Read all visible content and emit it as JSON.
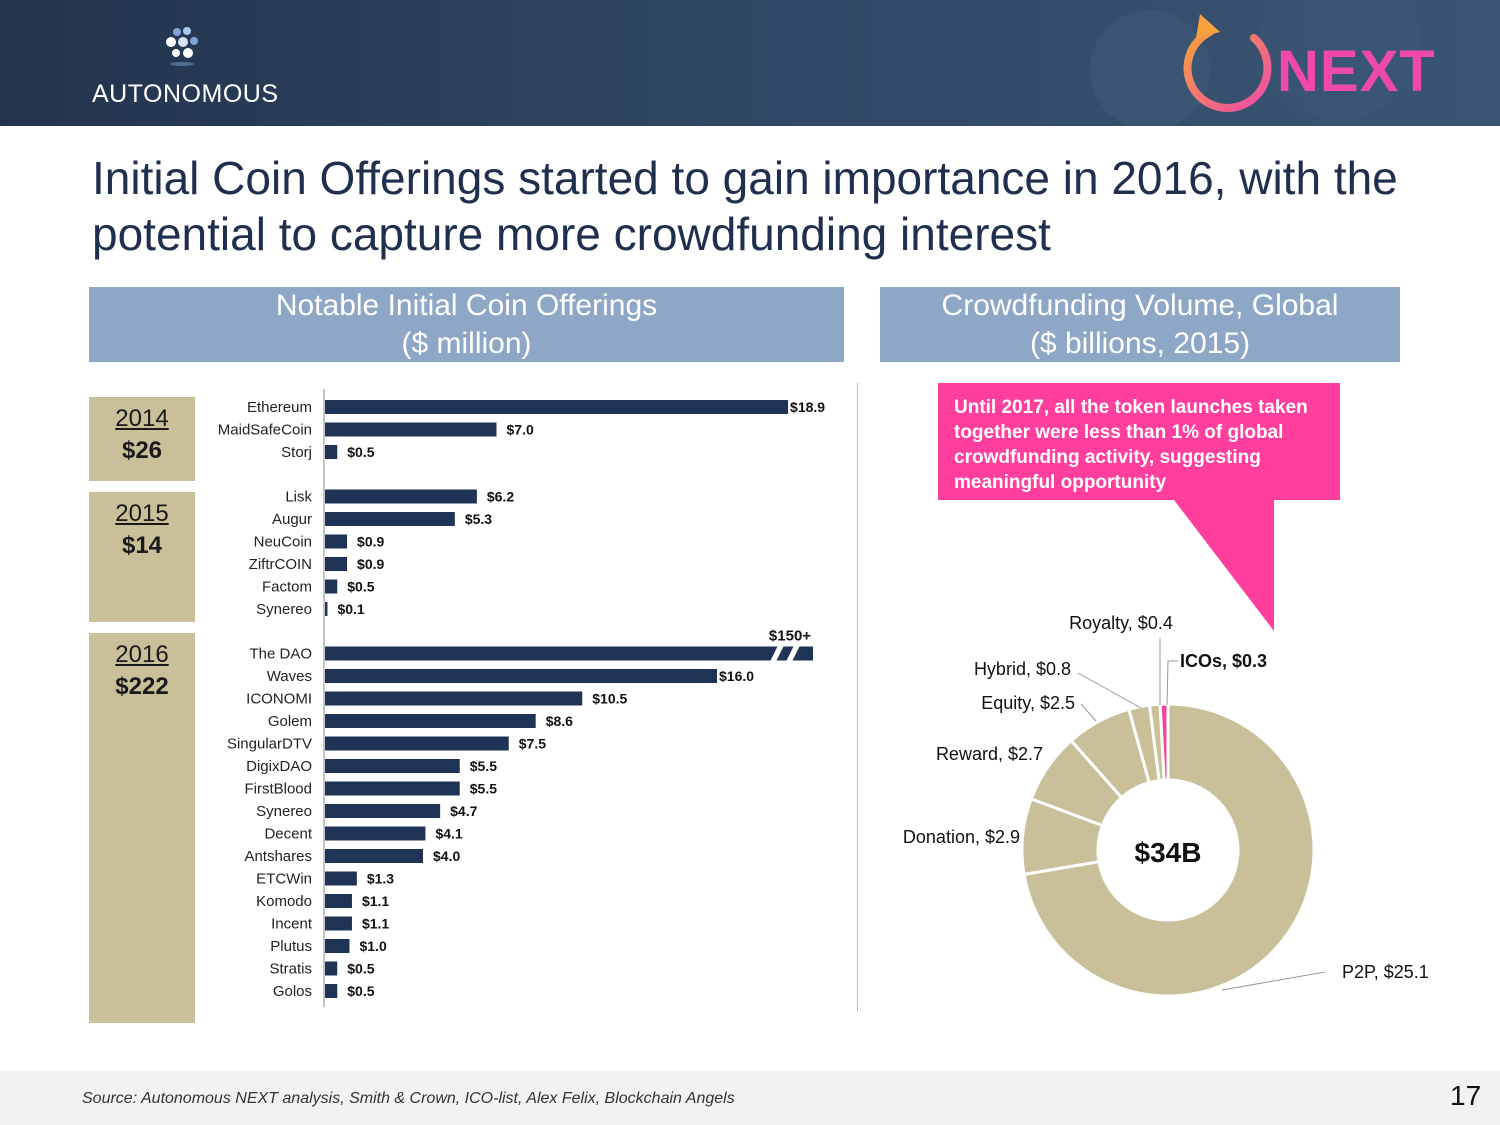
{
  "header": {
    "brand": "AUTONOMOUS",
    "next_logo": "NEXT",
    "accent_color": "#f04aa9"
  },
  "slide": {
    "title": "Initial Coin Offerings started to gain importance in 2016, with the potential to capture more crowdfunding interest",
    "left_panel": {
      "line1": "Notable Initial Coin Offerings",
      "line2": "($ million)"
    },
    "right_panel": {
      "line1": "Crowdfunding Volume, Global",
      "line2": "($ billions, 2015)"
    },
    "callout": "Until 2017, all the token launches taken together were less than 1% of global crowdfunding activity, suggesting meaningful opportunity",
    "years": [
      {
        "year": "2014",
        "total": "$26"
      },
      {
        "year": "2015",
        "total": "$14"
      },
      {
        "year": "2016",
        "total": "$222"
      }
    ],
    "source": "Source: Autonomous NEXT analysis, Smith & Crown, ICO-list, Alex Felix, Blockchain Angels",
    "page_number": "17"
  },
  "chart_data": [
    {
      "type": "bar",
      "orientation": "horizontal",
      "title": "Notable Initial Coin Offerings ($ million)",
      "bar_color": "#1e3355",
      "groups": [
        {
          "year": "2014",
          "items": [
            {
              "name": "Ethereum",
              "value": 18.9,
              "label": "$18.9"
            },
            {
              "name": "MaidSafeCoin",
              "value": 7.0,
              "label": "$7.0"
            },
            {
              "name": "Storj",
              "value": 0.5,
              "label": "$0.5"
            }
          ]
        },
        {
          "year": "2015",
          "items": [
            {
              "name": "Lisk",
              "value": 6.2,
              "label": "$6.2"
            },
            {
              "name": "Augur",
              "value": 5.3,
              "label": "$5.3"
            },
            {
              "name": "NeuCoin",
              "value": 0.9,
              "label": "$0.9"
            },
            {
              "name": "ZiftrCOIN",
              "value": 0.9,
              "label": "$0.9"
            },
            {
              "name": "Factom",
              "value": 0.5,
              "label": "$0.5"
            },
            {
              "name": "Synereo",
              "value": 0.1,
              "label": "$0.1"
            }
          ]
        },
        {
          "year": "2016",
          "items": [
            {
              "name": "The DAO",
              "value": 150,
              "label": "$150+",
              "truncated": true
            },
            {
              "name": "Waves",
              "value": 16.0,
              "label": "$16.0"
            },
            {
              "name": "ICONOMI",
              "value": 10.5,
              "label": "$10.5"
            },
            {
              "name": "Golem",
              "value": 8.6,
              "label": "$8.6"
            },
            {
              "name": "SingularDTV",
              "value": 7.5,
              "label": "$7.5"
            },
            {
              "name": "DigixDAO",
              "value": 5.5,
              "label": "$5.5"
            },
            {
              "name": "FirstBlood",
              "value": 5.5,
              "label": "$5.5"
            },
            {
              "name": "Synereo",
              "value": 4.7,
              "label": "$4.7"
            },
            {
              "name": "Decent",
              "value": 4.1,
              "label": "$4.1"
            },
            {
              "name": "Antshares",
              "value": 4.0,
              "label": "$4.0"
            },
            {
              "name": "ETCWin",
              "value": 1.3,
              "label": "$1.3"
            },
            {
              "name": "Komodo",
              "value": 1.1,
              "label": "$1.1"
            },
            {
              "name": "Incent",
              "value": 1.1,
              "label": "$1.1"
            },
            {
              "name": "Plutus",
              "value": 1.0,
              "label": "$1.0"
            },
            {
              "name": "Stratis",
              "value": 0.5,
              "label": "$0.5"
            },
            {
              "name": "Golos",
              "value": 0.5,
              "label": "$0.5"
            }
          ]
        }
      ]
    },
    {
      "type": "pie",
      "variant": "donut",
      "title": "Crowdfunding Volume, Global ($ billions, 2015)",
      "center_label": "$34B",
      "slices": [
        {
          "name": "P2P",
          "value": 25.1,
          "label": "P2P, $25.1",
          "color": "#c9bf99"
        },
        {
          "name": "Donation",
          "value": 2.9,
          "label": "Donation, $2.9",
          "color": "#c9bf99"
        },
        {
          "name": "Reward",
          "value": 2.7,
          "label": "Reward, $2.7",
          "color": "#c9bf99"
        },
        {
          "name": "Equity",
          "value": 2.5,
          "label": "Equity, $2.5",
          "color": "#c9bf99"
        },
        {
          "name": "Hybrid",
          "value": 0.8,
          "label": "Hybrid, $0.8",
          "color": "#c9bf99"
        },
        {
          "name": "Royalty",
          "value": 0.4,
          "label": "Royalty, $0.4",
          "color": "#c9bf99"
        },
        {
          "name": "ICOs",
          "value": 0.3,
          "label": "ICOs, $0.3",
          "color": "#f0479a",
          "highlight": true
        }
      ]
    }
  ]
}
